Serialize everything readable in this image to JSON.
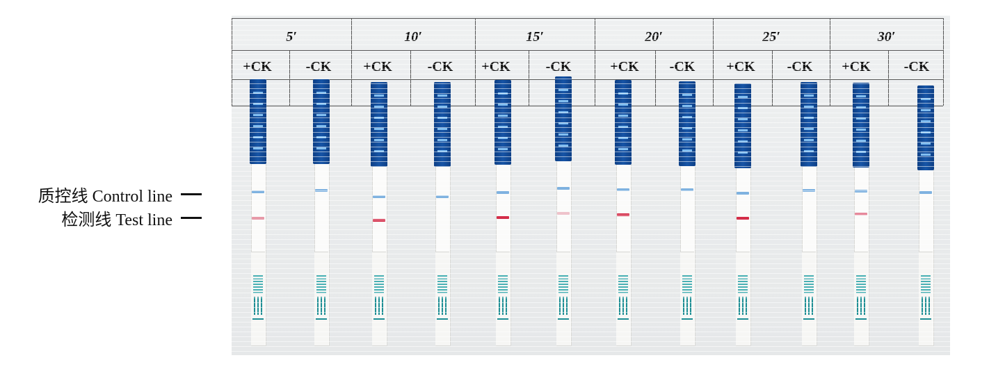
{
  "labels": {
    "control": "质控线 Control line",
    "test": "检测线 Test line"
  },
  "times": [
    "5′",
    "10′",
    "15′",
    "20′",
    "25′",
    "30′"
  ],
  "ck": [
    "+CK",
    "-CK"
  ],
  "strips": [
    {
      "group": "5′",
      "sample": "+CK",
      "control_line": "blue",
      "test_line": "faint-pink"
    },
    {
      "group": "5′",
      "sample": "-CK",
      "control_line": "blue",
      "test_line": "none"
    },
    {
      "group": "10′",
      "sample": "+CK",
      "control_line": "blue",
      "test_line": "red"
    },
    {
      "group": "10′",
      "sample": "-CK",
      "control_line": "blue",
      "test_line": "none"
    },
    {
      "group": "15′",
      "sample": "+CK",
      "control_line": "blue",
      "test_line": "red"
    },
    {
      "group": "15′",
      "sample": "-CK",
      "control_line": "blue",
      "test_line": "very-faint"
    },
    {
      "group": "20′",
      "sample": "+CK",
      "control_line": "blue",
      "test_line": "red"
    },
    {
      "group": "20′",
      "sample": "-CK",
      "control_line": "blue",
      "test_line": "none"
    },
    {
      "group": "25′",
      "sample": "+CK",
      "control_line": "blue",
      "test_line": "red"
    },
    {
      "group": "25′",
      "sample": "-CK",
      "control_line": "blue",
      "test_line": "none"
    },
    {
      "group": "30′",
      "sample": "+CK",
      "control_line": "blue",
      "test_line": "pink"
    },
    {
      "group": "30′",
      "sample": "-CK",
      "control_line": "blue",
      "test_line": "none"
    }
  ],
  "colors": {
    "strip_cap": "#1654a6",
    "control_line": "#7fb2e0",
    "test_line": "#d6384f",
    "grid": "#555555"
  }
}
